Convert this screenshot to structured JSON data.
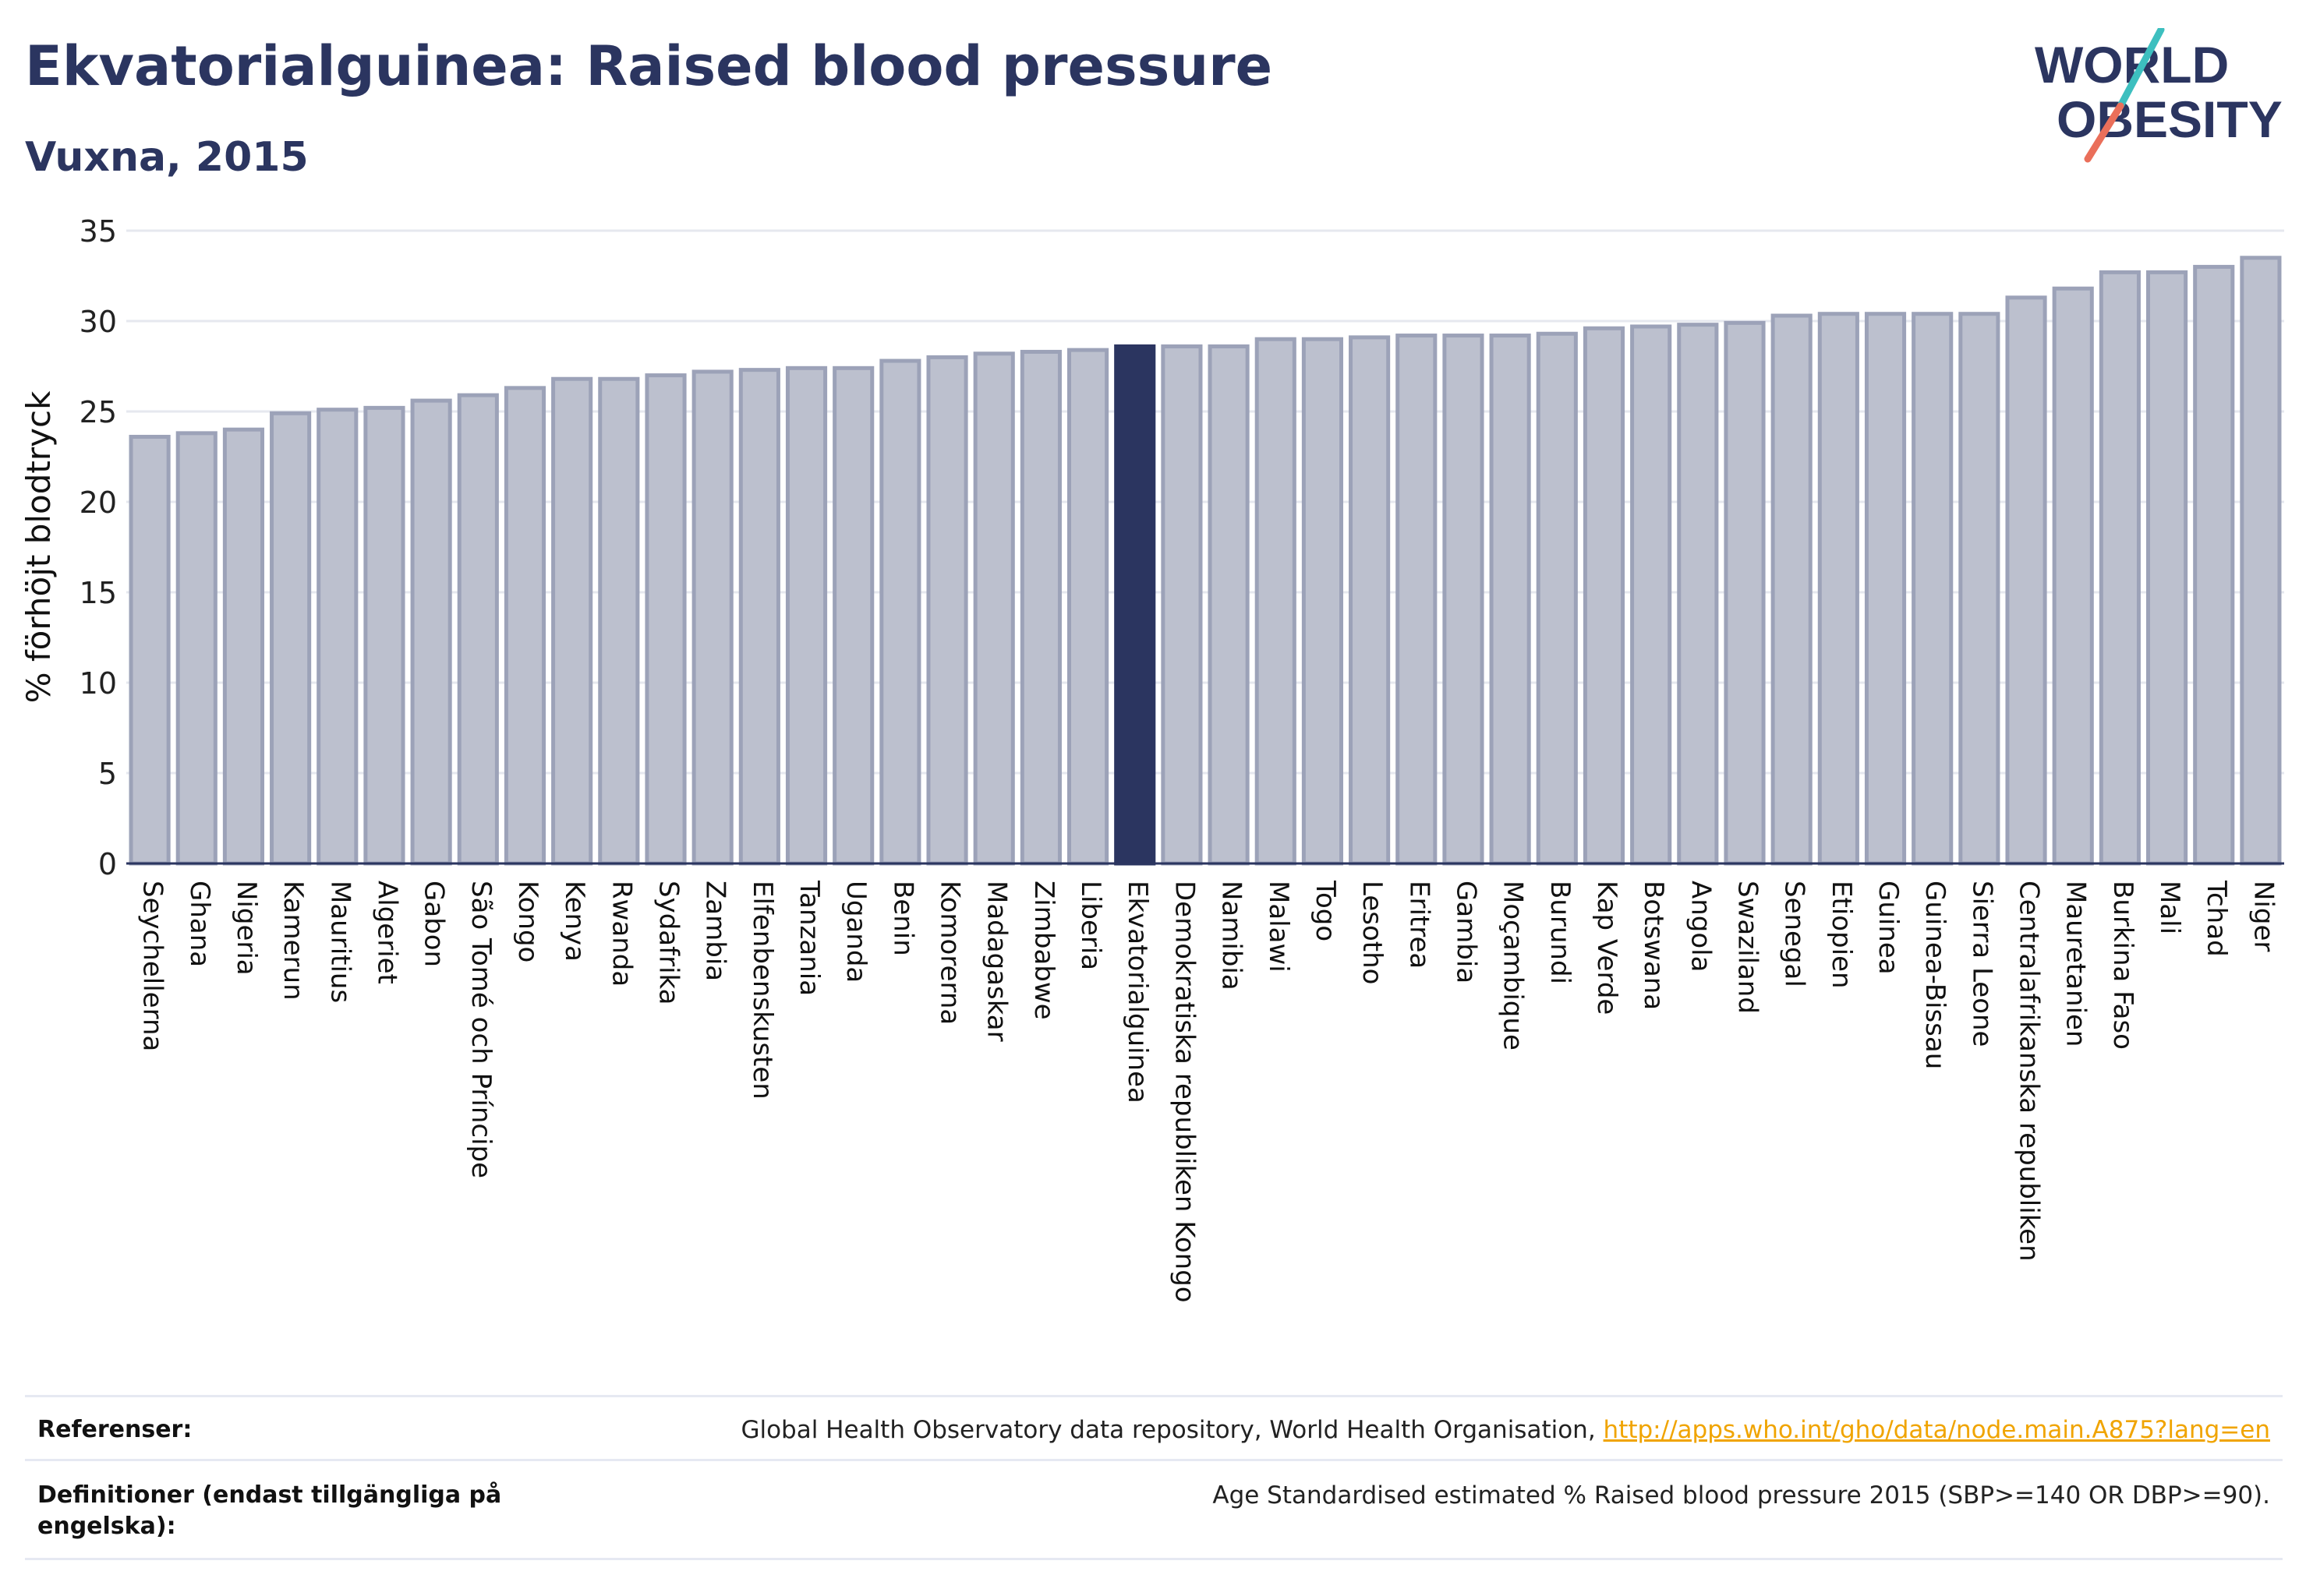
{
  "header": {
    "title": "Ekvatorialguinea: Raised blood pressure",
    "subtitle": "Vuxna, 2015"
  },
  "logo": {
    "line1": "WORLD",
    "line2": "OBESITY"
  },
  "colors": {
    "bar": "#bcc0ce",
    "bar_stroke": "#9ca2b8",
    "highlight": "#2b3560",
    "grid": "#e6e8ef",
    "axis": "#2b3560",
    "text": "#2b3560",
    "logo_teal": "#3dbfbf",
    "logo_coral": "#ea6f5a",
    "link": "#f0a400"
  },
  "chart_data": {
    "type": "bar",
    "ylabel": "% förhöjt blodtryck",
    "ylim": [
      0,
      35
    ],
    "yticks": [
      0,
      5,
      10,
      15,
      20,
      25,
      30,
      35
    ],
    "grid": true,
    "highlight": "Ekvatorialguinea",
    "categories": [
      "Seychellerna",
      "Ghana",
      "Nigeria",
      "Kamerun",
      "Mauritius",
      "Algeriet",
      "Gabon",
      "São Tomé och Príncipe",
      "Kongo",
      "Kenya",
      "Rwanda",
      "Sydafrika",
      "Zambia",
      "Elfenbenskusten",
      "Tanzania",
      "Uganda",
      "Benin",
      "Komorerna",
      "Madagaskar",
      "Zimbabwe",
      "Liberia",
      "Ekvatorialguinea",
      "Demokratiska republiken Kongo",
      "Namibia",
      "Malawi",
      "Togo",
      "Lesotho",
      "Eritrea",
      "Gambia",
      "Moçambique",
      "Burundi",
      "Kap Verde",
      "Botswana",
      "Angola",
      "Swaziland",
      "Senegal",
      "Etiopien",
      "Guinea",
      "Guinea-Bissau",
      "Sierra Leone",
      "Centralafrikanska republiken",
      "Mauretanien",
      "Burkina Faso",
      "Mali",
      "Tchad",
      "Niger"
    ],
    "values": [
      23.6,
      23.8,
      24.0,
      24.9,
      25.1,
      25.2,
      25.6,
      25.9,
      26.3,
      26.8,
      26.8,
      27.0,
      27.2,
      27.3,
      27.4,
      27.4,
      27.8,
      28.0,
      28.2,
      28.3,
      28.4,
      28.6,
      28.6,
      28.6,
      29.0,
      29.0,
      29.1,
      29.2,
      29.2,
      29.2,
      29.3,
      29.6,
      29.7,
      29.8,
      29.9,
      30.3,
      30.4,
      30.4,
      30.4,
      30.4,
      31.3,
      31.8,
      32.7,
      32.7,
      33.0,
      33.5
    ]
  },
  "footer": {
    "references_label": "Referenser:",
    "references_text": "Global Health Observatory data repository, World Health Organisation, ",
    "references_link": "http://apps.who.int/gho/data/node.main.A875?lang=en",
    "definitions_label": "Definitioner (endast tillgängliga på engelska):",
    "definitions_text": "Age Standardised estimated % Raised blood pressure 2015 (SBP>=140 OR DBP>=90)."
  }
}
